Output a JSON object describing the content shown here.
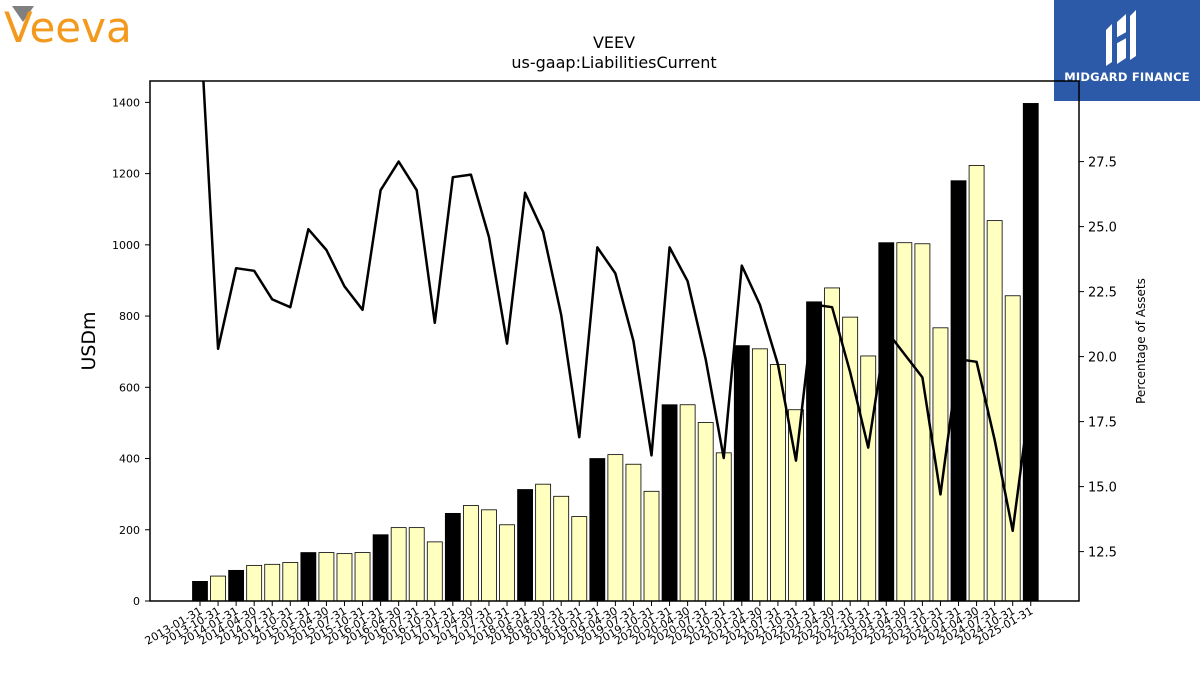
{
  "logos": {
    "left": {
      "text": "Veeva",
      "color": "#f39a1e",
      "triangle_color": "#808080"
    },
    "right": {
      "text": "MIDGARD FINANCE",
      "background": "#2d5aa8"
    }
  },
  "chart_data": {
    "type": "bar",
    "title": "VEEV",
    "subtitle": "us-gaap:LiabilitiesCurrent",
    "ylabel": "USDm",
    "y2label": "Percentage of Assets",
    "ylim": [
      0,
      1460
    ],
    "y2lim": [
      10.6,
      30.6
    ],
    "yticks": [
      0,
      200,
      400,
      600,
      800,
      1000,
      1200,
      1400
    ],
    "y2ticks": [
      12.5,
      15.0,
      17.5,
      20.0,
      22.5,
      25.0,
      27.5
    ],
    "categories": [
      "2013-01-31",
      "2013-10-31",
      "2014-01-31",
      "2014-04-30",
      "2014-07-31",
      "2014-10-31",
      "2015-01-31",
      "2015-04-30",
      "2015-07-31",
      "2015-10-31",
      "2016-01-31",
      "2016-04-30",
      "2016-07-31",
      "2016-10-31",
      "2017-01-31",
      "2017-04-30",
      "2017-07-31",
      "2017-10-31",
      "2018-01-31",
      "2018-04-30",
      "2018-07-31",
      "2018-10-31",
      "2019-01-31",
      "2019-04-30",
      "2019-07-31",
      "2019-10-31",
      "2020-01-31",
      "2020-04-30",
      "2020-07-31",
      "2020-10-31",
      "2021-01-31",
      "2021-04-30",
      "2021-07-31",
      "2021-10-31",
      "2022-01-31",
      "2022-04-30",
      "2022-07-31",
      "2022-10-31",
      "2023-01-31",
      "2023-04-30",
      "2023-07-31",
      "2023-10-31",
      "2024-01-31",
      "2024-04-30",
      "2024-07-31",
      "2024-10-31",
      "2025-01-31"
    ],
    "series": [
      {
        "name": "",
        "kind": "bar",
        "values": [
          55,
          70,
          86,
          100,
          103,
          108,
          136,
          136,
          133,
          136,
          186,
          206,
          206,
          166,
          246,
          268,
          256,
          214,
          313,
          328,
          294,
          237,
          400,
          411,
          384,
          308,
          551,
          551,
          501,
          416,
          717,
          708,
          664,
          537,
          840,
          879,
          797,
          688,
          1006,
          1006,
          1003,
          767,
          1180,
          1223,
          1068,
          857,
          1397
        ],
        "annual_color": "#000000",
        "quarter_color": "#ffffc0"
      },
      {
        "name": "",
        "kind": "line",
        "axis": "y2",
        "color": "#000000",
        "values": [
          33.0,
          20.3,
          23.4,
          23.3,
          22.2,
          21.9,
          24.9,
          24.1,
          22.7,
          21.8,
          26.4,
          27.5,
          26.4,
          21.3,
          26.9,
          27.0,
          24.6,
          20.5,
          26.3,
          24.8,
          21.6,
          16.9,
          24.2,
          23.2,
          20.6,
          16.2,
          24.2,
          22.9,
          19.9,
          16.1,
          23.5,
          22.0,
          19.7,
          16.0,
          22.0,
          21.9,
          19.4,
          16.5,
          21.0,
          20.1,
          19.2,
          14.7,
          19.9,
          19.8,
          16.8,
          13.3,
          18.6
        ]
      }
    ],
    "annual_categories": [
      "2013-01-31",
      "2014-01-31",
      "2015-01-31",
      "2016-01-31",
      "2017-01-31",
      "2018-01-31",
      "2019-01-31",
      "2020-01-31",
      "2021-01-31",
      "2022-01-31",
      "2023-01-31",
      "2024-01-31",
      "2025-01-31"
    ],
    "grid": false,
    "legend": "none"
  }
}
